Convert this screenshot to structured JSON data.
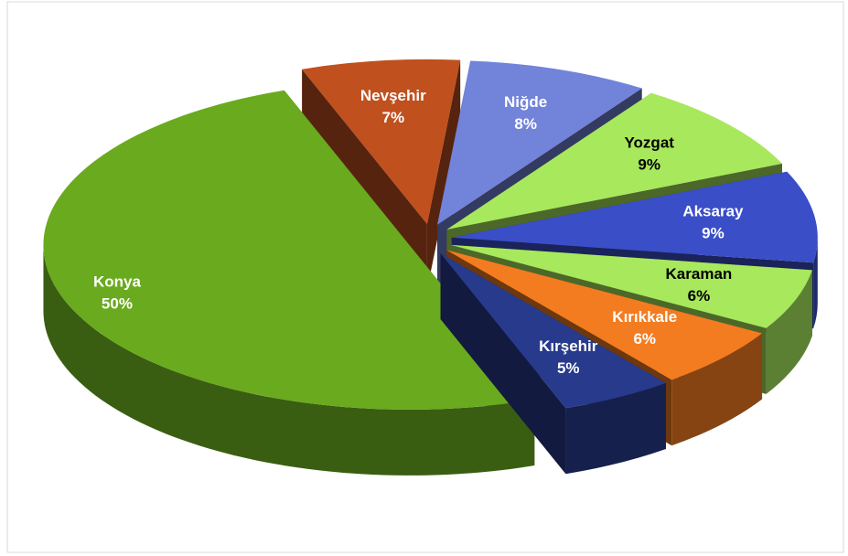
{
  "chart_data": {
    "type": "pie",
    "categories": [
      "Konya",
      "Nevşehir",
      "Niğde",
      "Yozgat",
      "Aksaray",
      "Karaman",
      "Kırıkkale",
      "Kırşehir"
    ],
    "values": [
      50,
      7,
      8,
      9,
      9,
      6,
      6,
      5
    ],
    "value_labels": [
      "50%",
      "7%",
      "8%",
      "9%",
      "9%",
      "6%",
      "6%",
      "5%"
    ],
    "colors": [
      "#6aaa1e",
      "#c0501e",
      "#7283da",
      "#a8e85c",
      "#3a4ec8",
      "#a8e85c",
      "#f37c20",
      "#283a8c"
    ]
  }
}
